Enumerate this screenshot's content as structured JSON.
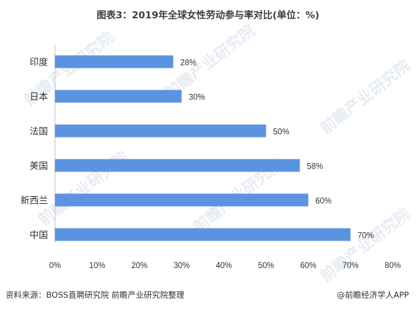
{
  "title": "图表3：2019年全球女性劳动参与率对比(单位：%)",
  "watermark": "前瞻产业研究院",
  "source_note": "资料来源：BOSS直聘研究院 前瞻产业研究院整理",
  "brand": "@前瞻经济学人APP",
  "chart_data": {
    "type": "bar",
    "orientation": "horizontal",
    "title": "图表3：2019年全球女性劳动参与率对比(单位：%)",
    "categories": [
      "印度",
      "日本",
      "法国",
      "美国",
      "新西兰",
      "中国"
    ],
    "values": [
      28,
      30,
      50,
      58,
      60,
      70
    ],
    "value_labels": [
      "28%",
      "30%",
      "50%",
      "58%",
      "60%",
      "70%"
    ],
    "xlim": [
      0,
      80
    ],
    "x_ticks": [
      "0%",
      "10%",
      "20%",
      "30%",
      "40%",
      "50%",
      "60%",
      "70%",
      "80%"
    ],
    "xlabel": "",
    "ylabel": "",
    "grid": false,
    "bar_color": "#5b93e0"
  }
}
